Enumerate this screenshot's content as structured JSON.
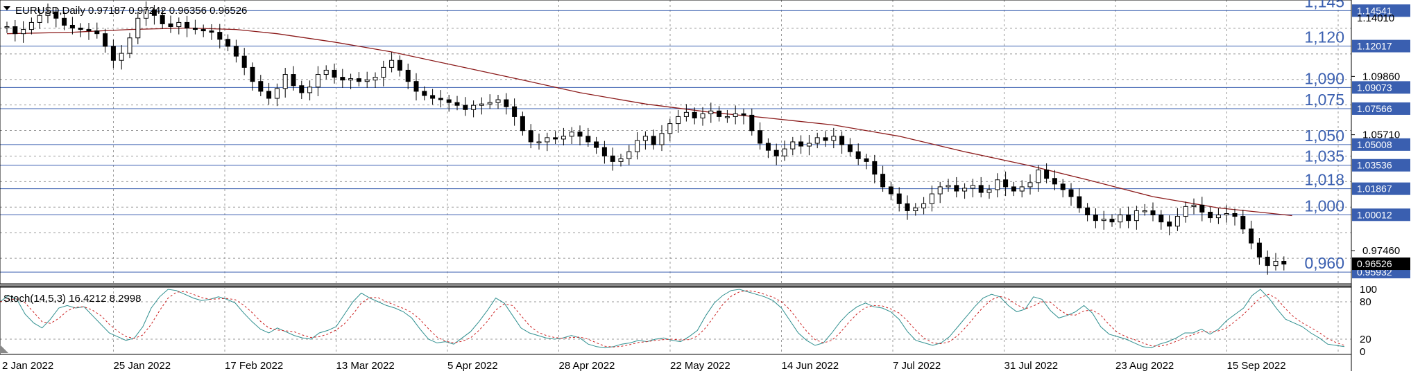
{
  "chart_data": [
    {
      "type": "candlestick",
      "symbol": "EURUSD",
      "timeframe": "Daily",
      "ohlc_last": {
        "open": "0.97187",
        "high": "0.97242",
        "low": "0.96356",
        "close": "0.96526"
      },
      "header_text": "EURUSD,Daily  0.97187 0.97242 0.96356 0.96526",
      "x_tick_labels": [
        "2 Jan 2022",
        "25 Jan 2022",
        "17 Feb 2022",
        "13 Mar 2022",
        "5 Apr 2022",
        "28 Apr 2022",
        "22 May 2022",
        "14 Jun 2022",
        "7 Jul 2022",
        "31 Jul 2022",
        "23 Aug 2022",
        "15 Sep 2022"
      ],
      "y_axis_labels": [
        "1.09860",
        "1.05710",
        "0.97460"
      ],
      "y_axis_values": [
        1.0986,
        1.0571,
        0.9746
      ],
      "ylim": [
        0.951,
        1.151
      ],
      "levels": [
        {
          "label": "1,145",
          "badge": "1.14541",
          "value": 1.14541
        },
        {
          "label": "1,120",
          "badge": "1.12017",
          "value": 1.12017
        },
        {
          "label": "1,090",
          "badge": "1.09073",
          "value": 1.09073
        },
        {
          "label": "1,075",
          "badge": "1.07566",
          "value": 1.07566
        },
        {
          "label": "1,050",
          "badge": "1.05008",
          "value": 1.05008
        },
        {
          "label": "1,035",
          "badge": "1.03536",
          "value": 1.03536
        },
        {
          "label": "1,018",
          "badge": "1.01867",
          "value": 1.01867
        },
        {
          "label": "1,000",
          "badge": "1.00012",
          "value": 1.00012
        },
        {
          "label": "0,960",
          "badge": "0.95932",
          "value": 0.95932
        }
      ],
      "current_price_badge": "0.96526",
      "current_price": 0.96526,
      "extra_label": "1.14010",
      "extra_label_value": 1.1401,
      "moving_average_color": "#8b1a1a",
      "level_color": "#3a5fb0",
      "price_path": [
        [
          1.134,
          0.5
        ],
        [
          1.129,
          1
        ],
        [
          1.132,
          2
        ],
        [
          1.137,
          3
        ],
        [
          1.142,
          4
        ],
        [
          1.1445,
          5
        ],
        [
          1.14,
          6
        ],
        [
          1.135,
          7
        ],
        [
          1.133,
          8
        ],
        [
          1.132,
          9
        ],
        [
          1.131,
          10
        ],
        [
          1.129,
          11
        ],
        [
          1.12,
          12
        ],
        [
          1.11,
          13
        ],
        [
          1.115,
          14
        ],
        [
          1.126,
          15
        ],
        [
          1.14,
          16
        ],
        [
          1.146,
          17
        ],
        [
          1.142,
          18
        ],
        [
          1.136,
          19
        ],
        [
          1.134,
          20
        ],
        [
          1.137,
          21
        ],
        [
          1.133,
          22
        ],
        [
          1.132,
          23
        ],
        [
          1.131,
          24
        ],
        [
          1.13,
          25
        ],
        [
          1.125,
          26
        ],
        [
          1.12,
          27
        ],
        [
          1.113,
          28
        ],
        [
          1.105,
          29
        ],
        [
          1.095,
          30
        ],
        [
          1.088,
          31
        ],
        [
          1.083,
          32
        ],
        [
          1.09,
          33
        ],
        [
          1.1,
          34
        ],
        [
          1.092,
          35
        ],
        [
          1.087,
          36
        ],
        [
          1.091,
          37
        ],
        [
          1.1,
          38
        ],
        [
          1.103,
          39
        ],
        [
          1.098,
          40
        ],
        [
          1.096,
          41
        ],
        [
          1.097,
          42
        ],
        [
          1.095,
          43
        ],
        [
          1.096,
          44
        ],
        [
          1.098,
          45
        ],
        [
          1.105,
          46
        ],
        [
          1.11,
          47
        ],
        [
          1.103,
          48
        ],
        [
          1.095,
          49
        ],
        [
          1.088,
          50
        ],
        [
          1.085,
          51
        ],
        [
          1.083,
          52
        ],
        [
          1.082,
          53
        ],
        [
          1.08,
          54
        ],
        [
          1.078,
          55
        ],
        [
          1.075,
          56
        ],
        [
          1.078,
          57
        ],
        [
          1.079,
          58
        ],
        [
          1.08,
          59
        ],
        [
          1.082,
          60
        ],
        [
          1.077,
          61
        ],
        [
          1.07,
          62
        ],
        [
          1.06,
          63
        ],
        [
          1.052,
          64
        ],
        [
          1.052,
          65
        ],
        [
          1.055,
          66
        ],
        [
          1.054,
          67
        ],
        [
          1.056,
          68
        ],
        [
          1.059,
          69
        ],
        [
          1.056,
          70
        ],
        [
          1.052,
          71
        ],
        [
          1.048,
          72
        ],
        [
          1.042,
          73
        ],
        [
          1.038,
          74
        ],
        [
          1.04,
          75
        ],
        [
          1.045,
          76
        ],
        [
          1.053,
          77
        ],
        [
          1.056,
          78
        ],
        [
          1.05,
          79
        ],
        [
          1.058,
          80
        ],
        [
          1.065,
          81
        ],
        [
          1.07,
          82
        ],
        [
          1.073,
          83
        ],
        [
          1.069,
          84
        ],
        [
          1.072,
          85
        ],
        [
          1.074,
          86
        ],
        [
          1.07,
          87
        ],
        [
          1.07,
          88
        ],
        [
          1.072,
          89
        ],
        [
          1.071,
          90
        ],
        [
          1.06,
          91
        ],
        [
          1.051,
          92
        ],
        [
          1.046,
          93
        ],
        [
          1.042,
          94
        ],
        [
          1.047,
          95
        ],
        [
          1.052,
          96
        ],
        [
          1.049,
          97
        ],
        [
          1.051,
          98
        ],
        [
          1.055,
          99
        ],
        [
          1.053,
          100
        ],
        [
          1.056,
          101
        ],
        [
          1.05,
          102
        ],
        [
          1.045,
          103
        ],
        [
          1.04,
          104
        ],
        [
          1.038,
          105
        ],
        [
          1.029,
          106
        ],
        [
          1.02,
          107
        ],
        [
          1.015,
          108
        ],
        [
          1.008,
          109
        ],
        [
          1.003,
          110
        ],
        [
          1.005,
          111
        ],
        [
          1.008,
          112
        ],
        [
          1.015,
          113
        ],
        [
          1.02,
          114
        ],
        [
          1.021,
          115
        ],
        [
          1.017,
          116
        ],
        [
          1.019,
          117
        ],
        [
          1.021,
          118
        ],
        [
          1.016,
          119
        ],
        [
          1.018,
          120
        ],
        [
          1.025,
          121
        ],
        [
          1.02,
          122
        ],
        [
          1.017,
          123
        ],
        [
          1.02,
          124
        ],
        [
          1.023,
          125
        ],
        [
          1.032,
          126
        ],
        [
          1.026,
          127
        ],
        [
          1.022,
          128
        ],
        [
          1.018,
          129
        ],
        [
          1.013,
          130
        ],
        [
          1.005,
          131
        ],
        [
          1.0,
          132
        ],
        [
          0.996,
          133
        ],
        [
          0.997,
          134
        ],
        [
          0.995,
          135
        ],
        [
          1.0,
          136
        ],
        [
          0.996,
          137
        ],
        [
          1.003,
          138
        ],
        [
          1.003,
          139
        ],
        [
          1.0,
          140
        ],
        [
          0.995,
          141
        ],
        [
          0.992,
          142
        ],
        [
          0.999,
          143
        ],
        [
          1.006,
          144
        ],
        [
          1.007,
          145
        ],
        [
          1.002,
          146
        ],
        [
          0.998,
          147
        ],
        [
          1.0,
          148
        ],
        [
          1.001,
          149
        ],
        [
          0.999,
          150
        ],
        [
          0.99,
          151
        ],
        [
          0.98,
          152
        ],
        [
          0.97,
          153
        ],
        [
          0.964,
          154
        ],
        [
          0.967,
          155
        ],
        [
          0.965,
          156
        ]
      ],
      "ma_path": [
        [
          1.129,
          0
        ],
        [
          1.13,
          8
        ],
        [
          1.132,
          15
        ],
        [
          1.133,
          22
        ],
        [
          1.132,
          28
        ],
        [
          1.129,
          33
        ],
        [
          1.123,
          40
        ],
        [
          1.116,
          47
        ],
        [
          1.106,
          55
        ],
        [
          1.096,
          63
        ],
        [
          1.087,
          70
        ],
        [
          1.079,
          78
        ],
        [
          1.073,
          86
        ],
        [
          1.069,
          93
        ],
        [
          1.064,
          101
        ],
        [
          1.056,
          109
        ],
        [
          1.045,
          117
        ],
        [
          1.035,
          125
        ],
        [
          1.025,
          132
        ],
        [
          1.013,
          140
        ],
        [
          1.005,
          148
        ],
        [
          1.002,
          153
        ],
        [
          0.9995,
          157
        ]
      ],
      "stoch_label": "Stoch(14,5,3) 16.4212 8.2998",
      "stoch_y_labels": [
        "100",
        "80",
        "20",
        "0"
      ],
      "stoch_y_values": [
        100,
        80,
        20,
        0
      ],
      "stoch_main_color": "#2f8f8f",
      "stoch_signal_color": "#cc2222",
      "stoch_main": [
        80,
        90,
        84,
        60,
        46,
        38,
        52,
        70,
        74,
        70,
        72,
        58,
        44,
        30,
        24,
        18,
        22,
        40,
        70,
        88,
        100,
        98,
        92,
        86,
        82,
        84,
        88,
        84,
        78,
        62,
        48,
        36,
        30,
        38,
        32,
        26,
        22,
        20,
        30,
        34,
        40,
        60,
        80,
        94,
        86,
        80,
        74,
        70,
        64,
        54,
        36,
        20,
        14,
        16,
        12,
        22,
        32,
        48,
        66,
        86,
        78,
        58,
        38,
        30,
        26,
        22,
        20,
        22,
        26,
        22,
        12,
        8,
        6,
        8,
        12,
        14,
        18,
        16,
        20,
        22,
        18,
        16,
        24,
        34,
        58,
        78,
        90,
        98,
        100,
        96,
        92,
        88,
        82,
        70,
        50,
        30,
        18,
        10,
        14,
        30,
        48,
        62,
        72,
        78,
        72,
        70,
        64,
        52,
        32,
        18,
        14,
        10,
        14,
        24,
        40,
        56,
        72,
        86,
        92,
        88,
        74,
        64,
        68,
        88,
        84,
        66,
        54,
        58,
        64,
        74,
        62,
        40,
        28,
        24,
        20,
        14,
        8,
        6,
        12,
        16,
        22,
        30,
        30,
        36,
        28,
        36,
        50,
        60,
        70,
        90,
        100,
        86,
        68,
        52,
        46,
        40,
        30,
        22,
        12,
        10,
        8
      ]
    }
  ]
}
